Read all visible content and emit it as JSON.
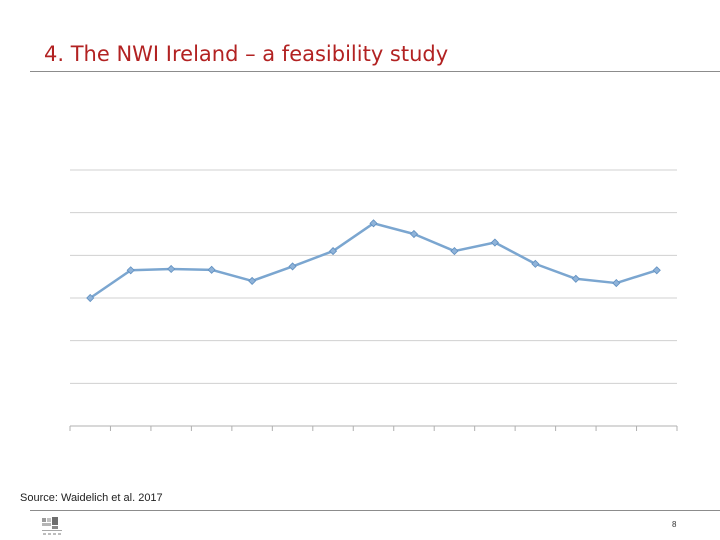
{
  "slide": {
    "title": "4. The NWI Ireland – a feasibility study",
    "source": "Source: Waidelich et al. 2017",
    "page_number": "8"
  },
  "logo": {
    "icon": "institute-logo-icon"
  },
  "colors": {
    "title": "#b22222",
    "series_line": "#7ba6d0",
    "series_marker": "#8fb3d9",
    "gridline": "#d0d0d0",
    "axis": "#b0b0b0"
  },
  "chart_data": {
    "type": "line",
    "title": "",
    "xlabel": "",
    "ylabel": "",
    "categories": [
      "",
      "",
      "",
      "",
      "",
      "",
      "",
      "",
      "",
      "",
      "",
      "",
      "",
      "",
      ""
    ],
    "ylim": [
      0,
      6
    ],
    "gridlines": 6,
    "grid": true,
    "series": [
      {
        "name": "",
        "values": [
          3.0,
          3.65,
          3.68,
          3.66,
          3.4,
          3.74,
          4.1,
          4.75,
          4.5,
          4.1,
          4.3,
          3.8,
          3.45,
          3.35,
          3.65
        ]
      }
    ]
  }
}
